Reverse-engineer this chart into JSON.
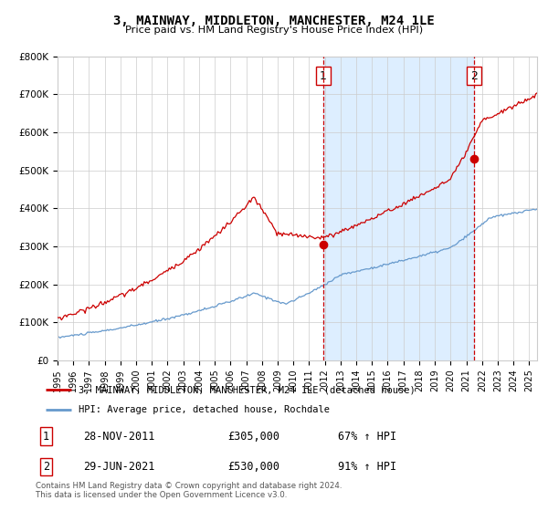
{
  "title": "3, MAINWAY, MIDDLETON, MANCHESTER, M24 1LE",
  "subtitle": "Price paid vs. HM Land Registry's House Price Index (HPI)",
  "ylim": [
    0,
    800000
  ],
  "xlim_start": 1995.0,
  "xlim_end": 2025.5,
  "yticks": [
    0,
    100000,
    200000,
    300000,
    400000,
    500000,
    600000,
    700000,
    800000
  ],
  "ytick_labels": [
    "£0",
    "£100K",
    "£200K",
    "£300K",
    "£400K",
    "£500K",
    "£600K",
    "£700K",
    "£800K"
  ],
  "xticks": [
    1995,
    1996,
    1997,
    1998,
    1999,
    2000,
    2001,
    2002,
    2003,
    2004,
    2005,
    2006,
    2007,
    2008,
    2009,
    2010,
    2011,
    2012,
    2013,
    2014,
    2015,
    2016,
    2017,
    2018,
    2019,
    2020,
    2021,
    2022,
    2023,
    2024,
    2025
  ],
  "transaction1_date": 2011.91,
  "transaction1_price": 305000,
  "transaction2_date": 2021.49,
  "transaction2_price": 530000,
  "legend_line1": "3, MAINWAY, MIDDLETON, MANCHESTER, M24 1LE (detached house)",
  "legend_line2": "HPI: Average price, detached house, Rochdale",
  "table_row1": [
    "1",
    "28-NOV-2011",
    "£305,000",
    "67% ↑ HPI"
  ],
  "table_row2": [
    "2",
    "29-JUN-2021",
    "£530,000",
    "91% ↑ HPI"
  ],
  "footnote": "Contains HM Land Registry data © Crown copyright and database right 2024.\nThis data is licensed under the Open Government Licence v3.0.",
  "red_color": "#cc0000",
  "blue_color": "#6699cc",
  "highlight_color": "#ddeeff",
  "grid_color": "#cccccc",
  "background_color": "#ffffff"
}
